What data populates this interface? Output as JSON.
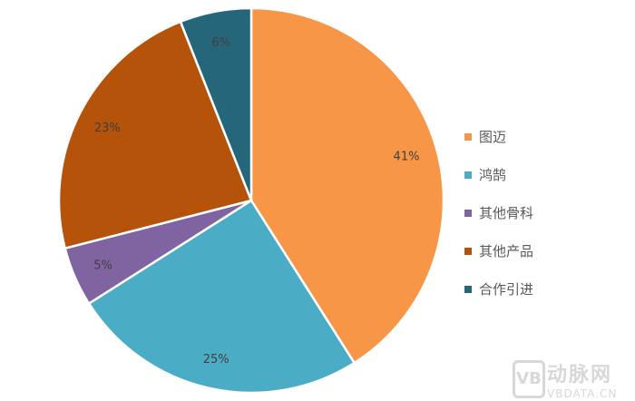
{
  "chart_data": {
    "type": "pie",
    "categories": [
      "图迈",
      "鸿鹄",
      "其他骨科",
      "其他产品",
      "合作引进"
    ],
    "values": [
      41,
      25,
      5,
      23,
      6
    ],
    "data_labels": [
      "41%",
      "25%",
      "5%",
      "23%",
      "6%"
    ],
    "colors": [
      "#F79646",
      "#4BACC6",
      "#8064A2",
      "#B45309",
      "#25667B"
    ],
    "start_angle": "top, clockwise",
    "legend_position": "right"
  },
  "watermark": {
    "logo": "VB",
    "text_cn": "动脉网",
    "text_en": "VBDATA.CN"
  }
}
